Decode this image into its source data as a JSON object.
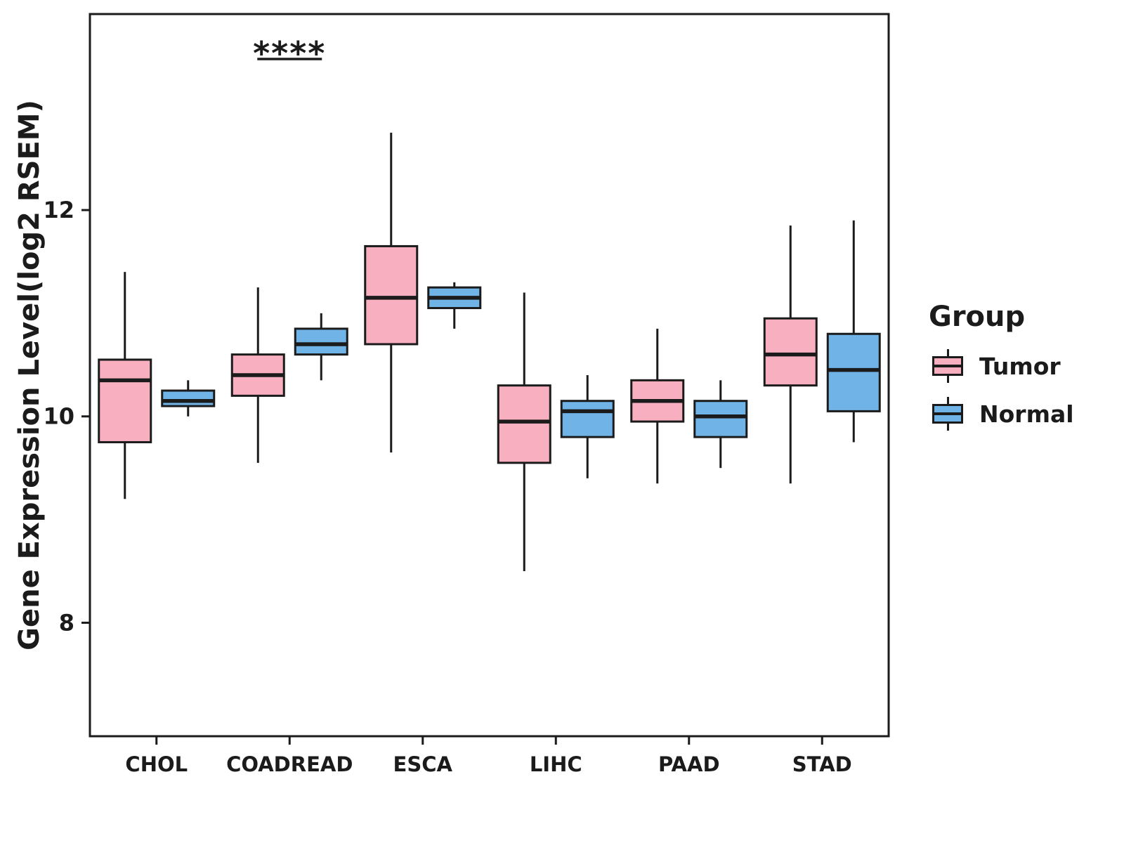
{
  "chart_data": {
    "type": "boxplot",
    "title": "",
    "xlabel": "",
    "ylabel": "Gene Expression Level(log2 RSEM)",
    "ylim": [
      6.9,
      13.9
    ],
    "yticks": [
      8,
      10,
      12
    ],
    "grid": false,
    "categories": [
      "CHOL",
      "COADREAD",
      "ESCA",
      "LIHC",
      "PAAD",
      "STAD"
    ],
    "series": [
      {
        "name": "Tumor",
        "color": "#F8B0C0",
        "boxes": [
          {
            "category": "CHOL",
            "low": 9.2,
            "q1": 9.75,
            "median": 10.35,
            "q3": 10.55,
            "high": 11.4
          },
          {
            "category": "COADREAD",
            "low": 9.55,
            "q1": 10.2,
            "median": 10.4,
            "q3": 10.6,
            "high": 11.25
          },
          {
            "category": "ESCA",
            "low": 9.65,
            "q1": 10.7,
            "median": 11.15,
            "q3": 11.65,
            "high": 12.75
          },
          {
            "category": "LIHC",
            "low": 8.5,
            "q1": 9.55,
            "median": 9.95,
            "q3": 10.3,
            "high": 11.2
          },
          {
            "category": "PAAD",
            "low": 9.35,
            "q1": 9.95,
            "median": 10.15,
            "q3": 10.35,
            "high": 10.85
          },
          {
            "category": "STAD",
            "low": 9.35,
            "q1": 10.3,
            "median": 10.6,
            "q3": 10.95,
            "high": 11.85
          }
        ]
      },
      {
        "name": "Normal",
        "color": "#6FB3E7",
        "boxes": [
          {
            "category": "CHOL",
            "low": 10.0,
            "q1": 10.1,
            "median": 10.15,
            "q3": 10.25,
            "high": 10.35
          },
          {
            "category": "COADREAD",
            "low": 10.35,
            "q1": 10.6,
            "median": 10.7,
            "q3": 10.85,
            "high": 11.0
          },
          {
            "category": "ESCA",
            "low": 10.85,
            "q1": 11.05,
            "median": 11.15,
            "q3": 11.25,
            "high": 11.3
          },
          {
            "category": "LIHC",
            "low": 9.4,
            "q1": 9.8,
            "median": 10.05,
            "q3": 10.15,
            "high": 10.4
          },
          {
            "category": "PAAD",
            "low": 9.5,
            "q1": 9.8,
            "median": 10.0,
            "q3": 10.15,
            "high": 10.35
          },
          {
            "category": "STAD",
            "low": 9.75,
            "q1": 10.05,
            "median": 10.45,
            "q3": 10.8,
            "high": 11.9
          }
        ]
      }
    ],
    "annotations": [
      {
        "category": "COADREAD",
        "label": "****",
        "y": 13.6
      }
    ],
    "legend": {
      "title": "Group",
      "position": "right",
      "entries": [
        {
          "label": "Tumor",
          "color": "#F8B0C0"
        },
        {
          "label": "Normal",
          "color": "#6FB3E7"
        }
      ]
    },
    "colors": {
      "ink": "#1b1b1b",
      "panel_background": "#ffffff"
    }
  }
}
